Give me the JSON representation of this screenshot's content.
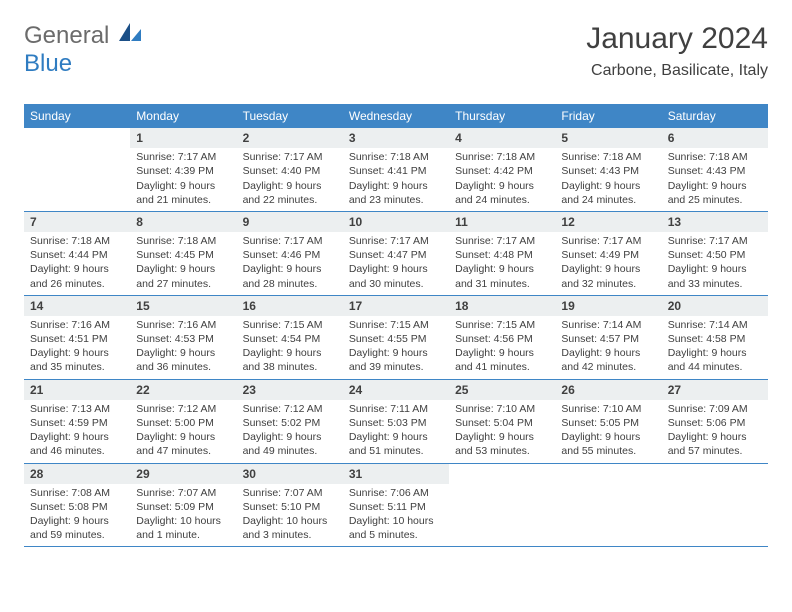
{
  "logo": {
    "part1": "General",
    "part2": "Blue"
  },
  "title": "January 2024",
  "location": "Carbone, Basilicate, Italy",
  "colors": {
    "header_bg": "#3f86c6",
    "header_text": "#ffffff",
    "daynum_bg": "#eceff0",
    "rule": "#3f86c6",
    "logo_gray": "#6b6b6b",
    "logo_blue": "#2f7cc1",
    "body_text": "#404040",
    "page_bg": "#ffffff"
  },
  "day_labels": [
    "Sunday",
    "Monday",
    "Tuesday",
    "Wednesday",
    "Thursday",
    "Friday",
    "Saturday"
  ],
  "weeks": [
    [
      {
        "n": "",
        "sr": "",
        "ss": "",
        "dl1": "",
        "dl2": ""
      },
      {
        "n": "1",
        "sr": "Sunrise: 7:17 AM",
        "ss": "Sunset: 4:39 PM",
        "dl1": "Daylight: 9 hours",
        "dl2": "and 21 minutes."
      },
      {
        "n": "2",
        "sr": "Sunrise: 7:17 AM",
        "ss": "Sunset: 4:40 PM",
        "dl1": "Daylight: 9 hours",
        "dl2": "and 22 minutes."
      },
      {
        "n": "3",
        "sr": "Sunrise: 7:18 AM",
        "ss": "Sunset: 4:41 PM",
        "dl1": "Daylight: 9 hours",
        "dl2": "and 23 minutes."
      },
      {
        "n": "4",
        "sr": "Sunrise: 7:18 AM",
        "ss": "Sunset: 4:42 PM",
        "dl1": "Daylight: 9 hours",
        "dl2": "and 24 minutes."
      },
      {
        "n": "5",
        "sr": "Sunrise: 7:18 AM",
        "ss": "Sunset: 4:43 PM",
        "dl1": "Daylight: 9 hours",
        "dl2": "and 24 minutes."
      },
      {
        "n": "6",
        "sr": "Sunrise: 7:18 AM",
        "ss": "Sunset: 4:43 PM",
        "dl1": "Daylight: 9 hours",
        "dl2": "and 25 minutes."
      }
    ],
    [
      {
        "n": "7",
        "sr": "Sunrise: 7:18 AM",
        "ss": "Sunset: 4:44 PM",
        "dl1": "Daylight: 9 hours",
        "dl2": "and 26 minutes."
      },
      {
        "n": "8",
        "sr": "Sunrise: 7:18 AM",
        "ss": "Sunset: 4:45 PM",
        "dl1": "Daylight: 9 hours",
        "dl2": "and 27 minutes."
      },
      {
        "n": "9",
        "sr": "Sunrise: 7:17 AM",
        "ss": "Sunset: 4:46 PM",
        "dl1": "Daylight: 9 hours",
        "dl2": "and 28 minutes."
      },
      {
        "n": "10",
        "sr": "Sunrise: 7:17 AM",
        "ss": "Sunset: 4:47 PM",
        "dl1": "Daylight: 9 hours",
        "dl2": "and 30 minutes."
      },
      {
        "n": "11",
        "sr": "Sunrise: 7:17 AM",
        "ss": "Sunset: 4:48 PM",
        "dl1": "Daylight: 9 hours",
        "dl2": "and 31 minutes."
      },
      {
        "n": "12",
        "sr": "Sunrise: 7:17 AM",
        "ss": "Sunset: 4:49 PM",
        "dl1": "Daylight: 9 hours",
        "dl2": "and 32 minutes."
      },
      {
        "n": "13",
        "sr": "Sunrise: 7:17 AM",
        "ss": "Sunset: 4:50 PM",
        "dl1": "Daylight: 9 hours",
        "dl2": "and 33 minutes."
      }
    ],
    [
      {
        "n": "14",
        "sr": "Sunrise: 7:16 AM",
        "ss": "Sunset: 4:51 PM",
        "dl1": "Daylight: 9 hours",
        "dl2": "and 35 minutes."
      },
      {
        "n": "15",
        "sr": "Sunrise: 7:16 AM",
        "ss": "Sunset: 4:53 PM",
        "dl1": "Daylight: 9 hours",
        "dl2": "and 36 minutes."
      },
      {
        "n": "16",
        "sr": "Sunrise: 7:15 AM",
        "ss": "Sunset: 4:54 PM",
        "dl1": "Daylight: 9 hours",
        "dl2": "and 38 minutes."
      },
      {
        "n": "17",
        "sr": "Sunrise: 7:15 AM",
        "ss": "Sunset: 4:55 PM",
        "dl1": "Daylight: 9 hours",
        "dl2": "and 39 minutes."
      },
      {
        "n": "18",
        "sr": "Sunrise: 7:15 AM",
        "ss": "Sunset: 4:56 PM",
        "dl1": "Daylight: 9 hours",
        "dl2": "and 41 minutes."
      },
      {
        "n": "19",
        "sr": "Sunrise: 7:14 AM",
        "ss": "Sunset: 4:57 PM",
        "dl1": "Daylight: 9 hours",
        "dl2": "and 42 minutes."
      },
      {
        "n": "20",
        "sr": "Sunrise: 7:14 AM",
        "ss": "Sunset: 4:58 PM",
        "dl1": "Daylight: 9 hours",
        "dl2": "and 44 minutes."
      }
    ],
    [
      {
        "n": "21",
        "sr": "Sunrise: 7:13 AM",
        "ss": "Sunset: 4:59 PM",
        "dl1": "Daylight: 9 hours",
        "dl2": "and 46 minutes."
      },
      {
        "n": "22",
        "sr": "Sunrise: 7:12 AM",
        "ss": "Sunset: 5:00 PM",
        "dl1": "Daylight: 9 hours",
        "dl2": "and 47 minutes."
      },
      {
        "n": "23",
        "sr": "Sunrise: 7:12 AM",
        "ss": "Sunset: 5:02 PM",
        "dl1": "Daylight: 9 hours",
        "dl2": "and 49 minutes."
      },
      {
        "n": "24",
        "sr": "Sunrise: 7:11 AM",
        "ss": "Sunset: 5:03 PM",
        "dl1": "Daylight: 9 hours",
        "dl2": "and 51 minutes."
      },
      {
        "n": "25",
        "sr": "Sunrise: 7:10 AM",
        "ss": "Sunset: 5:04 PM",
        "dl1": "Daylight: 9 hours",
        "dl2": "and 53 minutes."
      },
      {
        "n": "26",
        "sr": "Sunrise: 7:10 AM",
        "ss": "Sunset: 5:05 PM",
        "dl1": "Daylight: 9 hours",
        "dl2": "and 55 minutes."
      },
      {
        "n": "27",
        "sr": "Sunrise: 7:09 AM",
        "ss": "Sunset: 5:06 PM",
        "dl1": "Daylight: 9 hours",
        "dl2": "and 57 minutes."
      }
    ],
    [
      {
        "n": "28",
        "sr": "Sunrise: 7:08 AM",
        "ss": "Sunset: 5:08 PM",
        "dl1": "Daylight: 9 hours",
        "dl2": "and 59 minutes."
      },
      {
        "n": "29",
        "sr": "Sunrise: 7:07 AM",
        "ss": "Sunset: 5:09 PM",
        "dl1": "Daylight: 10 hours",
        "dl2": "and 1 minute."
      },
      {
        "n": "30",
        "sr": "Sunrise: 7:07 AM",
        "ss": "Sunset: 5:10 PM",
        "dl1": "Daylight: 10 hours",
        "dl2": "and 3 minutes."
      },
      {
        "n": "31",
        "sr": "Sunrise: 7:06 AM",
        "ss": "Sunset: 5:11 PM",
        "dl1": "Daylight: 10 hours",
        "dl2": "and 5 minutes."
      },
      {
        "n": "",
        "sr": "",
        "ss": "",
        "dl1": "",
        "dl2": ""
      },
      {
        "n": "",
        "sr": "",
        "ss": "",
        "dl1": "",
        "dl2": ""
      },
      {
        "n": "",
        "sr": "",
        "ss": "",
        "dl1": "",
        "dl2": ""
      }
    ]
  ]
}
